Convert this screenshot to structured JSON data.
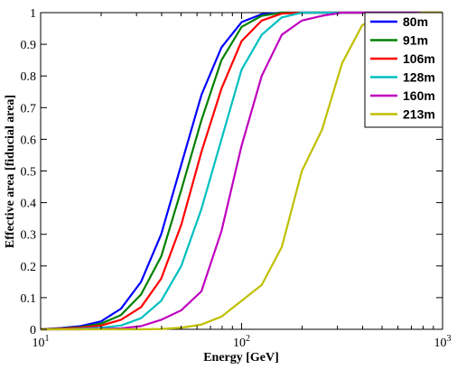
{
  "chart_data": {
    "type": "line",
    "xlabel": "Energy [GeV]",
    "ylabel": "Effective area [fiducial area]",
    "xscale": "log",
    "xlim": [
      10,
      1000
    ],
    "ylim": [
      0,
      1
    ],
    "x_ticks": [
      {
        "value": 10,
        "base": "10",
        "exp": "1"
      },
      {
        "value": 100,
        "base": "10",
        "exp": "2"
      },
      {
        "value": 1000,
        "base": "10",
        "exp": "3"
      }
    ],
    "y_ticks": [
      "0",
      "0.1",
      "0.2",
      "0.3",
      "0.4",
      "0.5",
      "0.6",
      "0.7",
      "0.8",
      "0.9",
      "1"
    ],
    "grid": false,
    "legend_position": "top-right",
    "series": [
      {
        "name": "80m",
        "color": "#0000ff",
        "x": [
          10,
          12.6,
          15.8,
          20,
          25.1,
          31.6,
          39.8,
          50.1,
          63.1,
          79.4,
          100,
          125.9,
          158.5,
          199.5,
          251.2,
          316.2,
          398.1,
          501.2,
          631,
          794.3,
          1000
        ],
        "y": [
          0.0,
          0.004,
          0.01,
          0.025,
          0.065,
          0.15,
          0.3,
          0.52,
          0.74,
          0.89,
          0.97,
          0.995,
          1,
          1,
          1,
          1,
          1,
          1,
          1,
          1,
          1
        ]
      },
      {
        "name": "91m",
        "color": "#008000",
        "x": [
          10,
          12.6,
          15.8,
          20,
          25.1,
          31.6,
          39.8,
          50.1,
          63.1,
          79.4,
          100,
          125.9,
          158.5,
          199.5,
          251.2,
          316.2,
          398.1,
          501.2,
          631,
          794.3,
          1000
        ],
        "y": [
          0.0,
          0.003,
          0.007,
          0.018,
          0.045,
          0.11,
          0.23,
          0.44,
          0.66,
          0.85,
          0.955,
          0.99,
          1,
          1,
          1,
          1,
          1,
          1,
          1,
          1,
          1
        ]
      },
      {
        "name": "106m",
        "color": "#ff0000",
        "x": [
          10,
          12.6,
          15.8,
          20,
          25.1,
          31.6,
          39.8,
          50.1,
          63.1,
          79.4,
          100,
          125.9,
          158.5,
          199.5,
          251.2,
          316.2,
          398.1,
          501.2,
          631,
          794.3,
          1000
        ],
        "y": [
          0.0,
          0.002,
          0.005,
          0.012,
          0.03,
          0.07,
          0.16,
          0.33,
          0.56,
          0.76,
          0.91,
          0.975,
          0.997,
          1,
          1,
          1,
          1,
          1,
          1,
          1,
          1
        ]
      },
      {
        "name": "128m",
        "color": "#00bfbf",
        "x": [
          10,
          12.6,
          15.8,
          20,
          25.1,
          31.6,
          39.8,
          50.1,
          63.1,
          79.4,
          100,
          125.9,
          158.5,
          199.5,
          251.2,
          316.2,
          398.1,
          501.2,
          631,
          794.3,
          1000
        ],
        "y": [
          0.0,
          0.0,
          0.002,
          0.005,
          0.012,
          0.035,
          0.09,
          0.2,
          0.38,
          0.6,
          0.82,
          0.93,
          0.985,
          1,
          1,
          1,
          1,
          1,
          1,
          1,
          1
        ]
      },
      {
        "name": "160m",
        "color": "#bf00bf",
        "x": [
          10,
          12.6,
          15.8,
          20,
          25.1,
          31.6,
          39.8,
          50.1,
          63.1,
          79.4,
          100,
          125.9,
          158.5,
          199.5,
          251.2,
          316.2,
          398.1,
          501.2,
          631,
          794.3,
          1000
        ],
        "y": [
          0.0,
          0.0,
          0.0,
          0.001,
          0.003,
          0.01,
          0.03,
          0.06,
          0.12,
          0.31,
          0.58,
          0.8,
          0.93,
          0.975,
          0.99,
          1,
          1,
          1,
          1,
          1,
          1
        ]
      },
      {
        "name": "213m",
        "color": "#bfbf00",
        "x": [
          10,
          12.6,
          15.8,
          20,
          25.1,
          31.6,
          39.8,
          50.1,
          63.1,
          79.4,
          100,
          125.9,
          158.5,
          199.5,
          251.2,
          316.2,
          398.1,
          501.2,
          631,
          794.3,
          1000
        ],
        "y": [
          0.0,
          0.0,
          0.0,
          0.0,
          0.0,
          0.0,
          0.001,
          0.005,
          0.015,
          0.04,
          0.09,
          0.14,
          0.26,
          0.5,
          0.63,
          0.84,
          0.96,
          0.99,
          0.995,
          1,
          1
        ]
      }
    ]
  }
}
